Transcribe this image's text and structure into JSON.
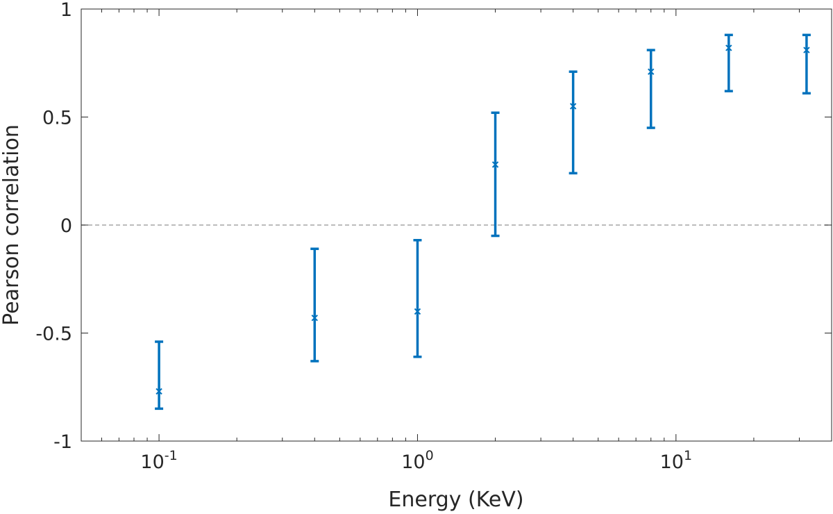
{
  "chart_data": {
    "type": "scatter",
    "xlabel": "Energy (KeV)",
    "ylabel": "Pearson correlation",
    "xscale": "log",
    "xlim": [
      0.05,
      40
    ],
    "ylim": [
      -1,
      1
    ],
    "x_ticks": [
      {
        "value": 0.1,
        "base": "10",
        "exp": "-1"
      },
      {
        "value": 1,
        "base": "10",
        "exp": "0"
      },
      {
        "value": 10,
        "base": "10",
        "exp": "1"
      }
    ],
    "y_ticks": [
      {
        "value": 1,
        "label": "1"
      },
      {
        "value": 0.5,
        "label": "0.5"
      },
      {
        "value": 0,
        "label": "0"
      },
      {
        "value": -0.5,
        "label": "-0.5"
      },
      {
        "value": -1,
        "label": "-1"
      }
    ],
    "reference_line": {
      "y": 0,
      "style": "dashed",
      "color": "#a6a6a6"
    },
    "grid": false,
    "box": true,
    "marker": "x",
    "color": "#0072BD",
    "series": [
      {
        "x": [
          0.1,
          0.4,
          1,
          2,
          4,
          8,
          16,
          32
        ],
        "y": [
          -0.77,
          -0.43,
          -0.4,
          0.28,
          0.55,
          0.71,
          0.82,
          0.81
        ],
        "y_lower": [
          -0.85,
          -0.63,
          -0.61,
          -0.05,
          0.24,
          0.45,
          0.62,
          0.61
        ],
        "y_upper": [
          -0.54,
          -0.11,
          -0.07,
          0.52,
          0.71,
          0.81,
          0.88,
          0.88
        ]
      }
    ]
  }
}
